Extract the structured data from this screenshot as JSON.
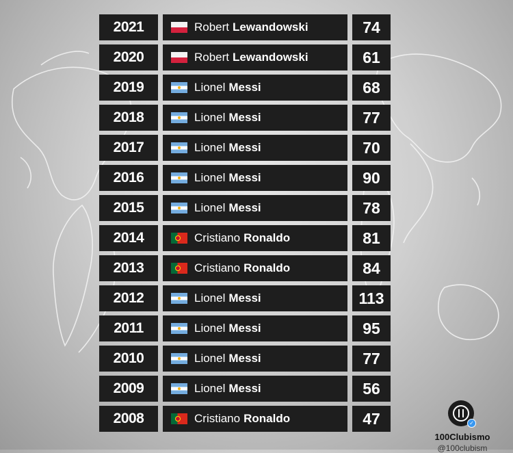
{
  "rows": [
    {
      "year": "2021",
      "first": "Robert",
      "last": "Lewandowski",
      "goals": "74",
      "flag": "poland-flag-icon"
    },
    {
      "year": "2020",
      "first": "Robert",
      "last": "Lewandowski",
      "goals": "61",
      "flag": "poland-flag-icon"
    },
    {
      "year": "2019",
      "first": "Lionel",
      "last": "Messi",
      "goals": "68",
      "flag": "argentina-flag-icon"
    },
    {
      "year": "2018",
      "first": "Lionel",
      "last": "Messi",
      "goals": "77",
      "flag": "argentina-flag-icon"
    },
    {
      "year": "2017",
      "first": "Lionel",
      "last": "Messi",
      "goals": "70",
      "flag": "argentina-flag-icon"
    },
    {
      "year": "2016",
      "first": "Lionel",
      "last": "Messi",
      "goals": "90",
      "flag": "argentina-flag-icon"
    },
    {
      "year": "2015",
      "first": "Lionel",
      "last": "Messi",
      "goals": "78",
      "flag": "argentina-flag-icon"
    },
    {
      "year": "2014",
      "first": "Cristiano",
      "last": "Ronaldo",
      "goals": "81",
      "flag": "portugal-flag-icon"
    },
    {
      "year": "2013",
      "first": "Cristiano",
      "last": "Ronaldo",
      "goals": "84",
      "flag": "portugal-flag-icon"
    },
    {
      "year": "2012",
      "first": "Lionel",
      "last": "Messi",
      "goals": "113",
      "flag": "argentina-flag-icon"
    },
    {
      "year": "2011",
      "first": "Lionel",
      "last": "Messi",
      "goals": "95",
      "flag": "argentina-flag-icon"
    },
    {
      "year": "2010",
      "first": "Lionel",
      "last": "Messi",
      "goals": "77",
      "flag": "argentina-flag-icon"
    },
    {
      "year": "2009",
      "first": "Lionel",
      "last": "Messi",
      "goals": "56",
      "flag": "argentina-flag-icon"
    },
    {
      "year": "2008",
      "first": "Cristiano",
      "last": "Ronaldo",
      "goals": "47",
      "flag": "portugal-flag-icon"
    }
  ],
  "brand": {
    "name": "100Clubismo",
    "handle": "@100clubism",
    "logo_icon": "club-logo-icon",
    "verified_icon": "verified-badge-icon",
    "verified_color": "#3897f0"
  },
  "colors": {
    "cell_background": "#1e1e1e",
    "cell_text": "#ffffff"
  }
}
